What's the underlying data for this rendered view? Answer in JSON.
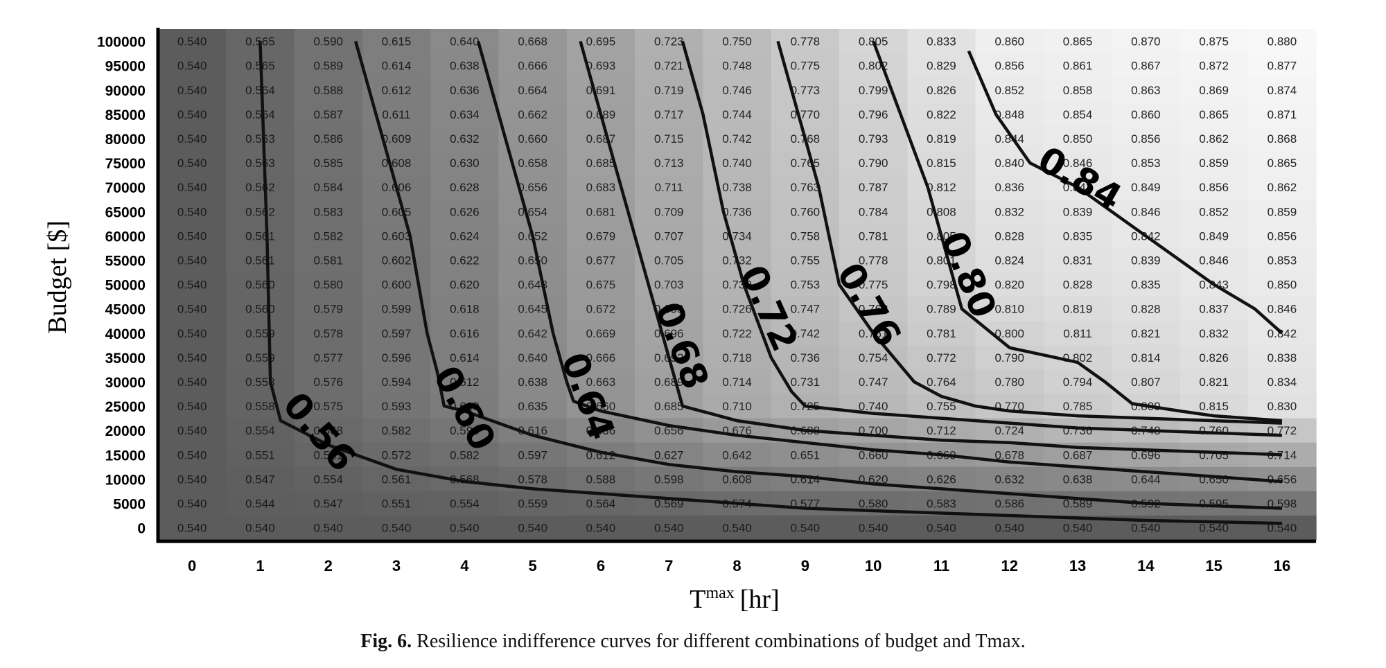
{
  "chart_data": {
    "type": "heatmap",
    "xlabel": "T",
    "xlabel_sup": "max",
    "xlabel_unit": "[hr]",
    "ylabel": "Budget [$]",
    "x": [
      0,
      1,
      2,
      3,
      4,
      5,
      6,
      7,
      8,
      9,
      10,
      11,
      12,
      13,
      14,
      15,
      16
    ],
    "y": [
      100000,
      95000,
      90000,
      85000,
      80000,
      75000,
      70000,
      65000,
      60000,
      55000,
      50000,
      45000,
      40000,
      35000,
      30000,
      25000,
      20000,
      15000,
      10000,
      5000,
      0
    ],
    "values": [
      [
        0.54,
        0.565,
        0.59,
        0.615,
        0.64,
        0.668,
        0.695,
        0.723,
        0.75,
        0.778,
        0.805,
        0.833,
        0.86,
        0.865,
        0.87,
        0.875,
        0.88
      ],
      [
        0.54,
        0.565,
        0.589,
        0.614,
        0.638,
        0.666,
        0.693,
        0.721,
        0.748,
        0.775,
        0.802,
        0.829,
        0.856,
        0.861,
        0.867,
        0.872,
        0.877
      ],
      [
        0.54,
        0.564,
        0.588,
        0.612,
        0.636,
        0.664,
        0.691,
        0.719,
        0.746,
        0.773,
        0.799,
        0.826,
        0.852,
        0.858,
        0.863,
        0.869,
        0.874
      ],
      [
        0.54,
        0.564,
        0.587,
        0.611,
        0.634,
        0.662,
        0.689,
        0.717,
        0.744,
        0.77,
        0.796,
        0.822,
        0.848,
        0.854,
        0.86,
        0.865,
        0.871
      ],
      [
        0.54,
        0.563,
        0.586,
        0.609,
        0.632,
        0.66,
        0.687,
        0.715,
        0.742,
        0.768,
        0.793,
        0.819,
        0.844,
        0.85,
        0.856,
        0.862,
        0.868
      ],
      [
        0.54,
        0.563,
        0.585,
        0.608,
        0.63,
        0.658,
        0.685,
        0.713,
        0.74,
        0.765,
        0.79,
        0.815,
        0.84,
        0.846,
        0.853,
        0.859,
        0.865
      ],
      [
        0.54,
        0.562,
        0.584,
        0.606,
        0.628,
        0.656,
        0.683,
        0.711,
        0.738,
        0.763,
        0.787,
        0.812,
        0.836,
        0.843,
        0.849,
        0.856,
        0.862
      ],
      [
        0.54,
        0.562,
        0.583,
        0.605,
        0.626,
        0.654,
        0.681,
        0.709,
        0.736,
        0.76,
        0.784,
        0.808,
        0.832,
        0.839,
        0.846,
        0.852,
        0.859
      ],
      [
        0.54,
        0.561,
        0.582,
        0.603,
        0.624,
        0.652,
        0.679,
        0.707,
        0.734,
        0.758,
        0.781,
        0.805,
        0.828,
        0.835,
        0.842,
        0.849,
        0.856
      ],
      [
        0.54,
        0.561,
        0.581,
        0.602,
        0.622,
        0.65,
        0.677,
        0.705,
        0.732,
        0.755,
        0.778,
        0.801,
        0.824,
        0.831,
        0.839,
        0.846,
        0.853
      ],
      [
        0.54,
        0.56,
        0.58,
        0.6,
        0.62,
        0.648,
        0.675,
        0.703,
        0.73,
        0.753,
        0.775,
        0.798,
        0.82,
        0.828,
        0.835,
        0.843,
        0.85
      ],
      [
        0.54,
        0.56,
        0.579,
        0.599,
        0.618,
        0.645,
        0.672,
        0.699,
        0.726,
        0.747,
        0.768,
        0.789,
        0.81,
        0.819,
        0.828,
        0.837,
        0.846
      ],
      [
        0.54,
        0.559,
        0.578,
        0.597,
        0.616,
        0.642,
        0.669,
        0.696,
        0.722,
        0.742,
        0.761,
        0.781,
        0.8,
        0.811,
        0.821,
        0.832,
        0.842
      ],
      [
        0.54,
        0.559,
        0.577,
        0.596,
        0.614,
        0.64,
        0.666,
        0.692,
        0.718,
        0.736,
        0.754,
        0.772,
        0.79,
        0.802,
        0.814,
        0.826,
        0.838
      ],
      [
        0.54,
        0.558,
        0.576,
        0.594,
        0.612,
        0.638,
        0.663,
        0.689,
        0.714,
        0.731,
        0.747,
        0.764,
        0.78,
        0.794,
        0.807,
        0.821,
        0.834
      ],
      [
        0.54,
        0.558,
        0.575,
        0.593,
        0.61,
        0.635,
        0.66,
        0.685,
        0.71,
        0.725,
        0.74,
        0.755,
        0.77,
        0.785,
        0.8,
        0.815,
        0.83
      ],
      [
        0.54,
        0.554,
        0.568,
        0.582,
        0.596,
        0.616,
        0.636,
        0.656,
        0.676,
        0.688,
        0.7,
        0.712,
        0.724,
        0.736,
        0.748,
        0.76,
        0.772
      ],
      [
        0.54,
        0.551,
        0.561,
        0.572,
        0.582,
        0.597,
        0.612,
        0.627,
        0.642,
        0.651,
        0.66,
        0.669,
        0.678,
        0.687,
        0.696,
        0.705,
        0.714
      ],
      [
        0.54,
        0.547,
        0.554,
        0.561,
        0.568,
        0.578,
        0.588,
        0.598,
        0.608,
        0.614,
        0.62,
        0.626,
        0.632,
        0.638,
        0.644,
        0.65,
        0.656
      ],
      [
        0.54,
        0.544,
        0.547,
        0.551,
        0.554,
        0.559,
        0.564,
        0.569,
        0.574,
        0.577,
        0.58,
        0.583,
        0.586,
        0.589,
        0.592,
        0.595,
        0.598
      ],
      [
        0.54,
        0.54,
        0.54,
        0.54,
        0.54,
        0.54,
        0.54,
        0.54,
        0.54,
        0.54,
        0.54,
        0.54,
        0.54,
        0.54,
        0.54,
        0.54,
        0.54
      ]
    ],
    "contours": [
      {
        "level_label": "0.56",
        "points": [
          [
            1,
            100000
          ],
          [
            1.1,
            60000
          ],
          [
            1.15,
            30000
          ],
          [
            1.3,
            22000
          ],
          [
            2,
            17000
          ],
          [
            3,
            12000
          ],
          [
            4,
            9500
          ],
          [
            5,
            8000
          ],
          [
            6,
            7000
          ],
          [
            7,
            6000
          ],
          [
            8,
            5000
          ],
          [
            9,
            4000
          ],
          [
            10,
            3500
          ],
          [
            11,
            3000
          ],
          [
            12,
            2500
          ],
          [
            13,
            2000
          ],
          [
            14,
            1500
          ],
          [
            15,
            1200
          ],
          [
            16,
            900
          ]
        ]
      },
      {
        "level_label": "0.60",
        "points": [
          [
            2.4,
            100000
          ],
          [
            2.8,
            80000
          ],
          [
            3.2,
            60000
          ],
          [
            3.45,
            40000
          ],
          [
            3.6,
            32000
          ],
          [
            3.7,
            25000
          ],
          [
            4,
            24000
          ],
          [
            5,
            19000
          ],
          [
            6,
            15500
          ],
          [
            7,
            13000
          ],
          [
            8,
            11500
          ],
          [
            9,
            10500
          ],
          [
            10,
            9000
          ],
          [
            11,
            8000
          ],
          [
            12,
            7000
          ],
          [
            13,
            6000
          ],
          [
            14,
            5000
          ],
          [
            15,
            4500
          ],
          [
            16,
            4000
          ]
        ]
      },
      {
        "level_label": "0.64",
        "points": [
          [
            4.2,
            100000
          ],
          [
            4.6,
            80000
          ],
          [
            5,
            60000
          ],
          [
            5.3,
            40000
          ],
          [
            5.5,
            30000
          ],
          [
            5.6,
            26000
          ],
          [
            6,
            24000
          ],
          [
            7,
            21000
          ],
          [
            8,
            19000
          ],
          [
            9,
            17500
          ],
          [
            10,
            16000
          ],
          [
            11,
            15000
          ],
          [
            12,
            13500
          ],
          [
            13,
            12500
          ],
          [
            14,
            11500
          ],
          [
            15,
            10500
          ],
          [
            16,
            9500
          ]
        ]
      },
      {
        "level_label": "0.68",
        "points": [
          [
            5.7,
            100000
          ],
          [
            6,
            85000
          ],
          [
            6.3,
            70000
          ],
          [
            6.6,
            55000
          ],
          [
            6.9,
            40000
          ],
          [
            7.1,
            30000
          ],
          [
            7.2,
            25000
          ],
          [
            8,
            22000
          ],
          [
            9,
            20000
          ],
          [
            10,
            19000
          ],
          [
            11,
            18000
          ],
          [
            12,
            17500
          ],
          [
            13,
            16500
          ],
          [
            14,
            16000
          ],
          [
            15,
            15500
          ],
          [
            16,
            15000
          ]
        ]
      },
      {
        "level_label": "0.72",
        "points": [
          [
            7.2,
            100000
          ],
          [
            7.5,
            85000
          ],
          [
            7.8,
            65000
          ],
          [
            8.1,
            50000
          ],
          [
            8.5,
            35000
          ],
          [
            8.8,
            28000
          ],
          [
            9,
            25000
          ],
          [
            10,
            23500
          ],
          [
            11,
            22500
          ],
          [
            12,
            21500
          ],
          [
            13,
            20500
          ],
          [
            14,
            20000
          ],
          [
            15,
            19500
          ],
          [
            16,
            19000
          ]
        ]
      },
      {
        "level_label": "0.76",
        "points": [
          [
            8.6,
            100000
          ],
          [
            8.9,
            85000
          ],
          [
            9.2,
            70000
          ],
          [
            9.5,
            50000
          ],
          [
            10,
            40000
          ],
          [
            10.6,
            30000
          ],
          [
            11,
            27000
          ],
          [
            11.5,
            25000
          ],
          [
            12,
            24000
          ],
          [
            13,
            23000
          ],
          [
            14,
            22500
          ],
          [
            15,
            22000
          ],
          [
            16,
            21500
          ]
        ]
      },
      {
        "level_label": "0.80",
        "points": [
          [
            10,
            100000
          ],
          [
            10.4,
            85000
          ],
          [
            10.8,
            70000
          ],
          [
            11,
            60000
          ],
          [
            11.3,
            45000
          ],
          [
            12,
            37000
          ],
          [
            13,
            34000
          ],
          [
            13.4,
            30000
          ],
          [
            13.8,
            25500
          ],
          [
            14.5,
            24000
          ],
          [
            15,
            23000
          ],
          [
            16,
            22000
          ]
        ]
      },
      {
        "level_label": "0.84",
        "points": [
          [
            11.4,
            98000
          ],
          [
            11.8,
            85000
          ],
          [
            12.3,
            75000
          ],
          [
            13,
            70000
          ],
          [
            14,
            60000
          ],
          [
            15,
            50000
          ],
          [
            15.6,
            45000
          ],
          [
            16,
            40000
          ]
        ]
      }
    ]
  },
  "caption": {
    "figure_label": "Fig. 6.",
    "text": "Resilience indifference curves for different combinations of budget and Tmax."
  }
}
